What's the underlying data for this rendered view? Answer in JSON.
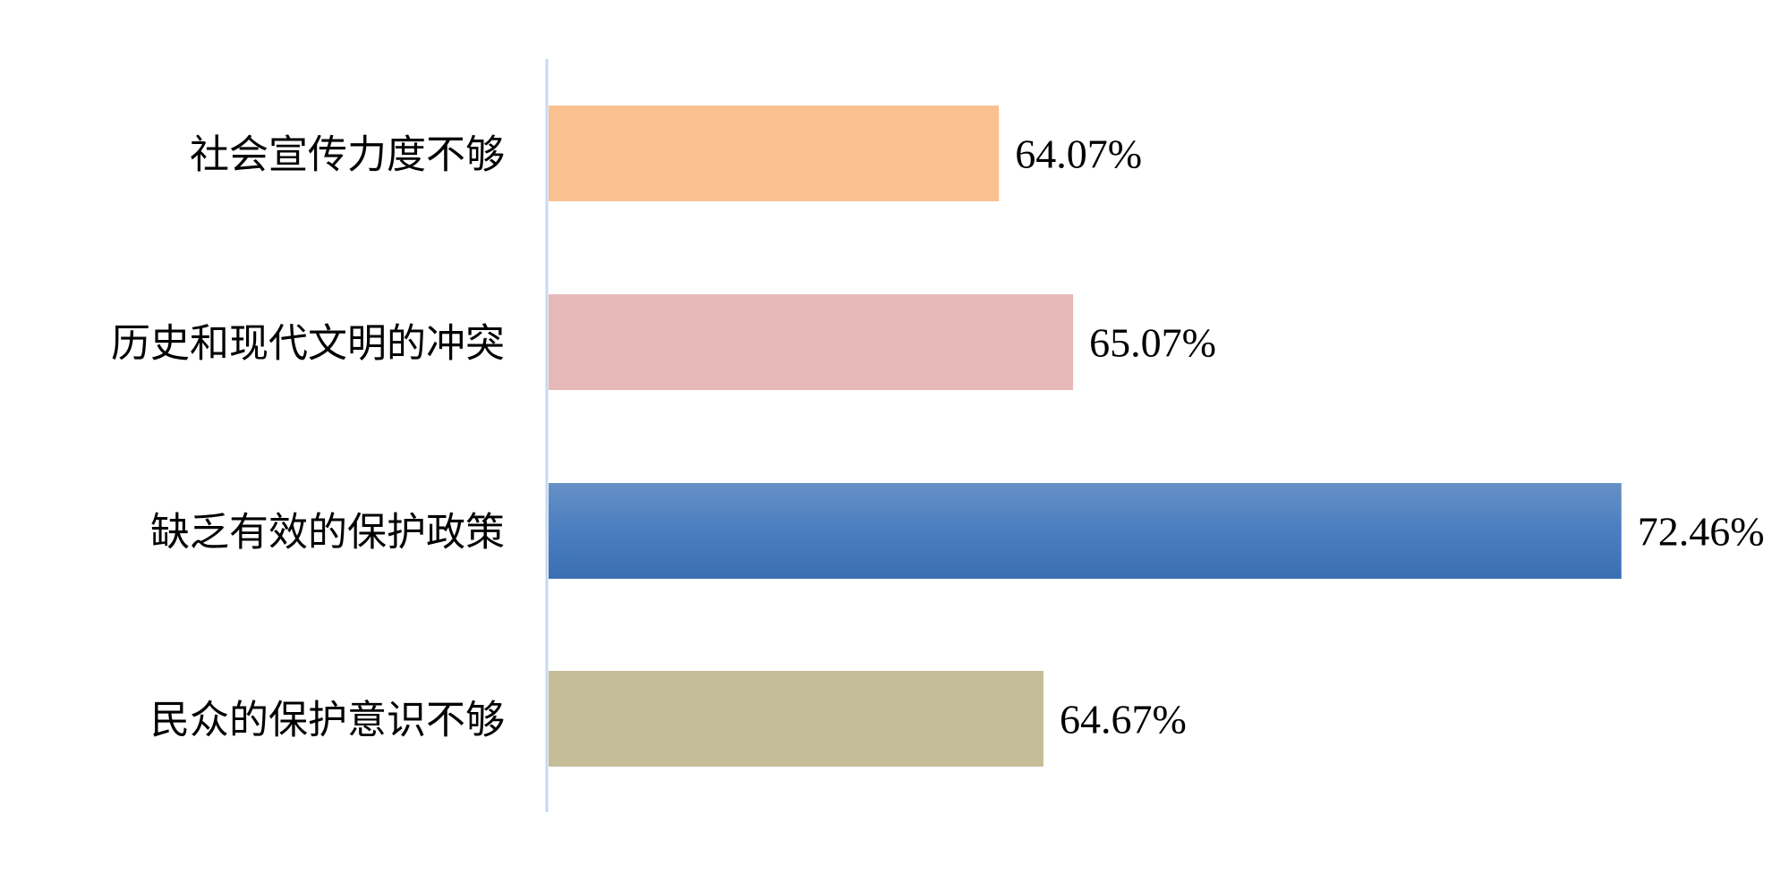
{
  "chart_data": {
    "type": "bar",
    "orientation": "horizontal",
    "categories": [
      "社会宣传力度不够",
      "历史和现代文明的冲突",
      "缺乏有效的保护政策",
      "民众的保护意识不够"
    ],
    "values": [
      64.07,
      65.07,
      72.46,
      64.67
    ],
    "data_labels": [
      "64.07%",
      "65.07%",
      "72.46%",
      "64.67%"
    ],
    "colors": [
      "#FAC090",
      "#E6B9B8",
      "#4F81BD",
      "#C4BD97"
    ],
    "xlim": [
      58,
      74
    ],
    "unit": "%",
    "title": "",
    "xlabel": "",
    "ylabel": "",
    "grid": false,
    "legend": "none",
    "axis_color": "#C6D9F1"
  }
}
